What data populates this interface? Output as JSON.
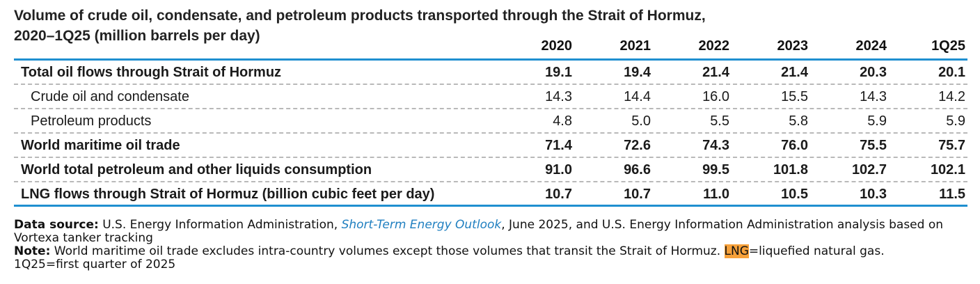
{
  "title": {
    "line1": "Volume of crude oil, condensate, and petroleum products transported through the Strait of Hormuz,",
    "line2": "2020–1Q25 (million barrels per day)"
  },
  "columns": [
    "2020",
    "2021",
    "2022",
    "2023",
    "2024",
    "1Q25"
  ],
  "rows": [
    {
      "label": "Total oil flows through Strait of Hormuz",
      "values": [
        "19.1",
        "19.4",
        "21.4",
        "21.4",
        "20.3",
        "20.1"
      ]
    },
    {
      "label": "Crude oil and condensate",
      "values": [
        "14.3",
        "14.4",
        "16.0",
        "15.5",
        "14.3",
        "14.2"
      ]
    },
    {
      "label": "Petroleum products",
      "values": [
        "4.8",
        "5.0",
        "5.5",
        "5.8",
        "5.9",
        "5.9"
      ]
    },
    {
      "label": "World maritime oil trade",
      "values": [
        "71.4",
        "72.6",
        "74.3",
        "76.0",
        "75.5",
        "75.7"
      ]
    },
    {
      "label": "World total petroleum and other liquids consumption",
      "values": [
        "91.0",
        "96.6",
        "99.5",
        "101.8",
        "102.7",
        "102.1"
      ]
    },
    {
      "label": "LNG flows through Strait of Hormuz (billion cubic feet per day)",
      "values": [
        "10.7",
        "10.7",
        "11.0",
        "10.5",
        "10.3",
        "11.5"
      ]
    }
  ],
  "footer": {
    "source_label": "Data source:",
    "source_pre": " U.S. Energy Information Administration, ",
    "source_link": "Short-Term Energy Outlook",
    "source_post": ", June 2025, and U.S. Energy Information Administration analysis based on Vortexa tanker tracking",
    "note_label": "Note:",
    "note_pre": " World maritime oil trade excludes intra-country volumes except those volumes that transit the Strait of Hormuz. ",
    "note_highlight": "LNG",
    "note_post": "=liquefied natural gas.",
    "note_line2": "1Q25=first quarter of 2025"
  }
}
